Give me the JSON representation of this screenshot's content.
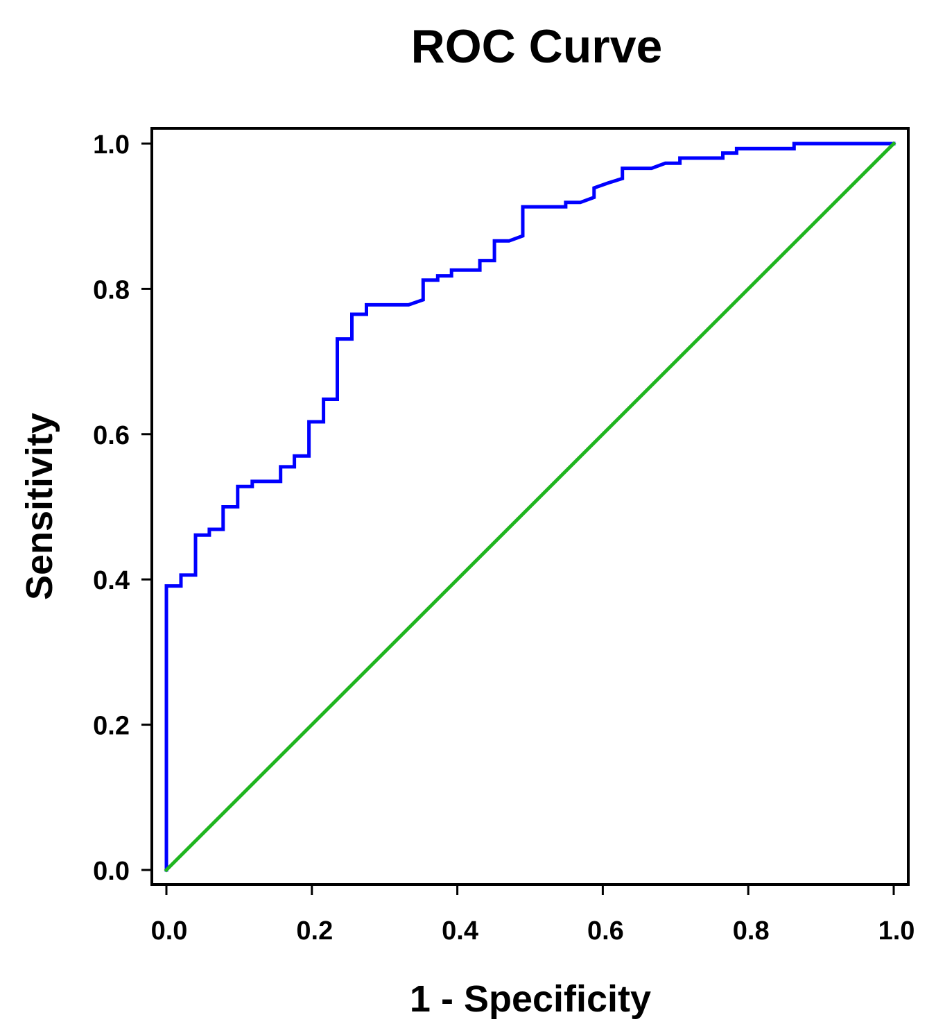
{
  "chart_data": {
    "type": "line",
    "title": "ROC Curve",
    "xlabel": "1 - Specificity",
    "ylabel": "Sensitivity",
    "xlim": [
      0.0,
      1.0
    ],
    "ylim": [
      0.0,
      1.0
    ],
    "x_ticks": [
      "0.0",
      "0.2",
      "0.4",
      "0.6",
      "0.8",
      "1.0"
    ],
    "y_ticks": [
      "0.0",
      "0.2",
      "0.4",
      "0.6",
      "0.8",
      "1.0"
    ],
    "grid": false,
    "series": [
      {
        "color": "#0000ff",
        "x": [
          0.0,
          0.0,
          0.02,
          0.02,
          0.04,
          0.04,
          0.059,
          0.059,
          0.078,
          0.078,
          0.098,
          0.098,
          0.118,
          0.118,
          0.157,
          0.157,
          0.176,
          0.176,
          0.196,
          0.196,
          0.216,
          0.216,
          0.235,
          0.235,
          0.255,
          0.255,
          0.275,
          0.275,
          0.333,
          0.353,
          0.353,
          0.373,
          0.373,
          0.392,
          0.392,
          0.431,
          0.431,
          0.451,
          0.451,
          0.471,
          0.49,
          0.49,
          0.549,
          0.549,
          0.569,
          0.588,
          0.588,
          0.608,
          0.627,
          0.627,
          0.667,
          0.686,
          0.706,
          0.706,
          0.765,
          0.765,
          0.784,
          0.784,
          0.863,
          0.863,
          1.0
        ],
        "y": [
          0.0,
          0.391,
          0.391,
          0.406,
          0.406,
          0.461,
          0.461,
          0.469,
          0.469,
          0.5,
          0.5,
          0.528,
          0.528,
          0.535,
          0.535,
          0.555,
          0.555,
          0.57,
          0.57,
          0.617,
          0.617,
          0.648,
          0.648,
          0.731,
          0.731,
          0.765,
          0.765,
          0.778,
          0.778,
          0.785,
          0.812,
          0.812,
          0.818,
          0.818,
          0.826,
          0.826,
          0.839,
          0.839,
          0.866,
          0.866,
          0.873,
          0.913,
          0.913,
          0.919,
          0.919,
          0.926,
          0.939,
          0.946,
          0.952,
          0.966,
          0.966,
          0.973,
          0.973,
          0.98,
          0.98,
          0.987,
          0.987,
          0.993,
          0.993,
          1.0,
          1.0
        ]
      },
      {
        "color": "#1fb51f",
        "x": [
          0.0,
          1.0
        ],
        "y": [
          0.0,
          1.0
        ]
      }
    ]
  }
}
